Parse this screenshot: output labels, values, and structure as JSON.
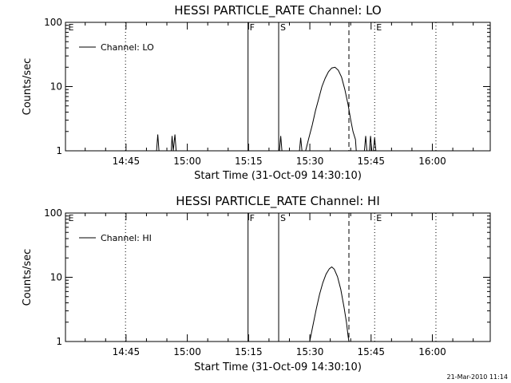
{
  "footer": {
    "timestamp": "21-Mar-2010 11:14"
  },
  "chart_data": [
    {
      "type": "line",
      "title": "HESSI PARTICLE_RATE Channel: LO",
      "xlabel": "Start Time (31-Oct-09 14:30:10)",
      "ylabel": "Counts/sec",
      "yscale": "log",
      "ylim": [
        1,
        100
      ],
      "xlim_minutes": [
        0,
        104
      ],
      "x_ticks": [
        {
          "t": 14.83,
          "label": "14:45"
        },
        {
          "t": 29.83,
          "label": "15:00"
        },
        {
          "t": 44.83,
          "label": "15:15"
        },
        {
          "t": 59.83,
          "label": "15:30"
        },
        {
          "t": 74.83,
          "label": "15:45"
        },
        {
          "t": 89.83,
          "label": "16:00"
        }
      ],
      "y_ticks": [
        {
          "v": 1,
          "label": "1"
        },
        {
          "v": 10,
          "label": "10"
        },
        {
          "v": 100,
          "label": "100"
        }
      ],
      "legend": {
        "position": "top-left",
        "entries": [
          "Channel: LO"
        ]
      },
      "markers": [
        {
          "t": 0.3,
          "label": "E",
          "style": "none"
        },
        {
          "t": 14.7,
          "label": "",
          "style": "dotted"
        },
        {
          "t": 44.7,
          "label": "F",
          "style": "solid"
        },
        {
          "t": 52.2,
          "label": "S",
          "style": "solid"
        },
        {
          "t": 69.4,
          "label": "",
          "style": "dashed"
        },
        {
          "t": 75.7,
          "label": "E",
          "style": "dotted"
        },
        {
          "t": 90.7,
          "label": "",
          "style": "dotted"
        }
      ],
      "series": [
        {
          "name": "Channel: LO",
          "points": [
            [
              0,
              1
            ],
            [
              22.3,
              1
            ],
            [
              22.6,
              1.8
            ],
            [
              22.9,
              1
            ],
            [
              25.9,
              1
            ],
            [
              26.1,
              1.7
            ],
            [
              26.4,
              1
            ],
            [
              26.8,
              1.8
            ],
            [
              27.1,
              1
            ],
            [
              52.4,
              1
            ],
            [
              52.7,
              1.7
            ],
            [
              53,
              1
            ],
            [
              57.3,
              1
            ],
            [
              57.6,
              1.6
            ],
            [
              57.9,
              1
            ],
            [
              58.8,
              1
            ],
            [
              59.6,
              1.6
            ],
            [
              60.4,
              2.5
            ],
            [
              61.2,
              4.2
            ],
            [
              62,
              6.5
            ],
            [
              62.8,
              10
            ],
            [
              63.6,
              13.5
            ],
            [
              64.4,
              17
            ],
            [
              65.2,
              19.5
            ],
            [
              66,
              20
            ],
            [
              66.8,
              18
            ],
            [
              67.6,
              14
            ],
            [
              68.4,
              9
            ],
            [
              69.2,
              5.2
            ],
            [
              69.8,
              3.1
            ],
            [
              70.4,
              2
            ],
            [
              71,
              1.5
            ],
            [
              71.2,
              1
            ],
            [
              73.2,
              1
            ],
            [
              73.5,
              1.7
            ],
            [
              73.8,
              1
            ],
            [
              74.4,
              1
            ],
            [
              74.7,
              1.7
            ],
            [
              75,
              1
            ],
            [
              75.4,
              1
            ],
            [
              75.7,
              1.6
            ],
            [
              76,
              1
            ],
            [
              104,
              1
            ]
          ]
        }
      ]
    },
    {
      "type": "line",
      "title": "HESSI PARTICLE_RATE Channel: HI",
      "xlabel": "Start Time (31-Oct-09 14:30:10)",
      "ylabel": "Counts/sec",
      "yscale": "log",
      "ylim": [
        1,
        100
      ],
      "xlim_minutes": [
        0,
        104
      ],
      "x_ticks": [
        {
          "t": 14.83,
          "label": "14:45"
        },
        {
          "t": 29.83,
          "label": "15:00"
        },
        {
          "t": 44.83,
          "label": "15:15"
        },
        {
          "t": 59.83,
          "label": "15:30"
        },
        {
          "t": 74.83,
          "label": "15:45"
        },
        {
          "t": 89.83,
          "label": "16:00"
        }
      ],
      "y_ticks": [
        {
          "v": 1,
          "label": "1"
        },
        {
          "v": 10,
          "label": "10"
        },
        {
          "v": 100,
          "label": "100"
        }
      ],
      "legend": {
        "position": "top-left",
        "entries": [
          "Channel: HI"
        ]
      },
      "markers": [
        {
          "t": 0.3,
          "label": "E",
          "style": "none"
        },
        {
          "t": 14.7,
          "label": "",
          "style": "dotted"
        },
        {
          "t": 44.7,
          "label": "F",
          "style": "solid"
        },
        {
          "t": 52.2,
          "label": "S",
          "style": "solid"
        },
        {
          "t": 69.4,
          "label": "",
          "style": "dashed"
        },
        {
          "t": 75.7,
          "label": "E",
          "style": "dotted"
        },
        {
          "t": 90.7,
          "label": "",
          "style": "dotted"
        }
      ],
      "series": [
        {
          "name": "Channel: HI",
          "points": [
            [
              0,
              1
            ],
            [
              59.8,
              1
            ],
            [
              60.6,
              1.8
            ],
            [
              61.4,
              3.2
            ],
            [
              62.2,
              5.4
            ],
            [
              63,
              8.2
            ],
            [
              63.8,
              11.2
            ],
            [
              64.6,
              13.6
            ],
            [
              65.2,
              14.5
            ],
            [
              65.8,
              13.4
            ],
            [
              66.6,
              10.2
            ],
            [
              67.4,
              6.5
            ],
            [
              68.2,
              3.4
            ],
            [
              68.8,
              2
            ],
            [
              69.2,
              1.2
            ],
            [
              69.4,
              1
            ],
            [
              104,
              1
            ]
          ]
        }
      ]
    }
  ]
}
